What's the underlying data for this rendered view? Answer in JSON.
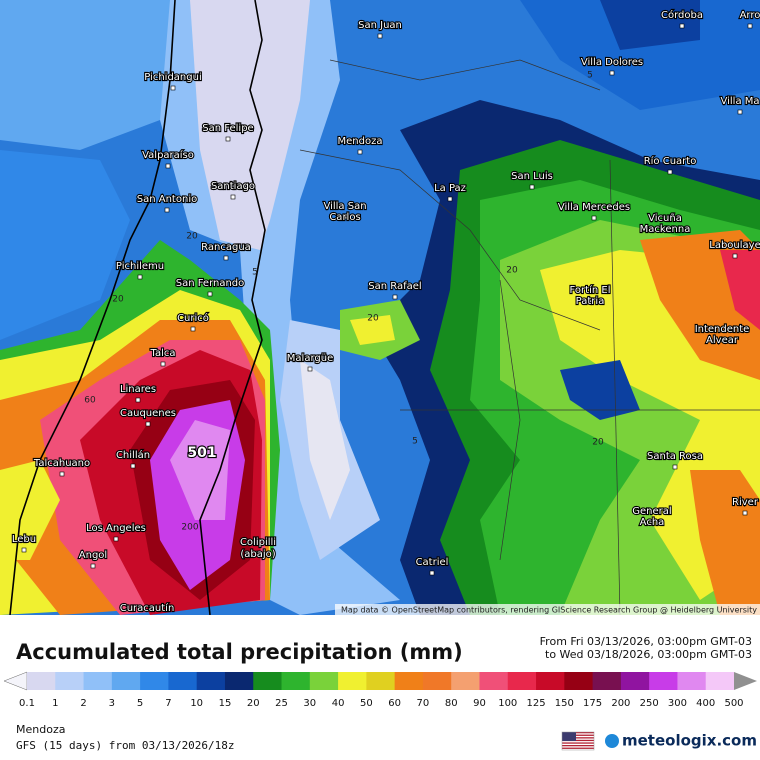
{
  "map": {
    "cities": [
      "San Juan",
      "Córdoba",
      "Arro",
      "Pichidangui",
      "Villa Dolores",
      "Villa Ma",
      "San Felipe",
      "Valparaíso",
      "Mendoza",
      "Río Cuarto",
      "Santiago",
      "San Luis",
      "La Paz",
      "San Antonio",
      "Villa San",
      "Carlos",
      "Villa Mercedes",
      "Vicuña",
      "Mackenna",
      "Laboulaye",
      "Rancagua",
      "Pichilemu",
      "San Fernando",
      "San Rafael",
      "Fortín El",
      "Patria",
      "Curicó",
      "Intendente",
      "Alvear",
      "Talca",
      "Malargüe",
      "Linares",
      "Cauquenes",
      "Chillán",
      "Talcahuano",
      "Santa Rosa",
      "General",
      "Acha",
      "River",
      "Los Angeles",
      "Lebu",
      "Colipilli",
      "(abajo)",
      "Angol",
      "Catriel",
      "Curacautín"
    ],
    "contour_labels": [
      "5",
      "5",
      "20",
      "20",
      "20",
      "5",
      "20",
      "60",
      "20",
      "200",
      "501"
    ],
    "attribution": "Map data © OpenStreetMap contributors, rendering GIScience Research Group @ Heidelberg University"
  },
  "header": {
    "title": "Accumulated total precipitation (mm)",
    "from": "From Fri 03/13/2026, 03:00pm GMT-03",
    "to": "to Wed 03/18/2026, 03:00pm GMT-03"
  },
  "legend": {
    "labels": [
      "0.1",
      "1",
      "2",
      "3",
      "5",
      "7",
      "10",
      "15",
      "20",
      "25",
      "30",
      "40",
      "50",
      "60",
      "70",
      "80",
      "90",
      "100",
      "125",
      "150",
      "175",
      "200",
      "250",
      "300",
      "400",
      "500"
    ],
    "colors": [
      "#f4f4fa",
      "#d8d8f0",
      "#b8d0f8",
      "#90c0f8",
      "#60a8f0",
      "#3088e8",
      "#1868d0",
      "#0c40a0",
      "#0a2870",
      "#168c1e",
      "#2eb42e",
      "#7ad23a",
      "#f0f030",
      "#e0d020",
      "#f08018",
      "#f07828",
      "#f4a070",
      "#f05078",
      "#e8284c",
      "#c80a28",
      "#960014",
      "#781050",
      "#9014a0",
      "#c83ce8",
      "#e088f0",
      "#f4c8f8",
      "#d0d0d0",
      "#909090"
    ]
  },
  "footer": {
    "location": "Mendoza",
    "model": "GFS (15 days) from 03/13/2026/18z",
    "brand": "meteologix.com"
  }
}
